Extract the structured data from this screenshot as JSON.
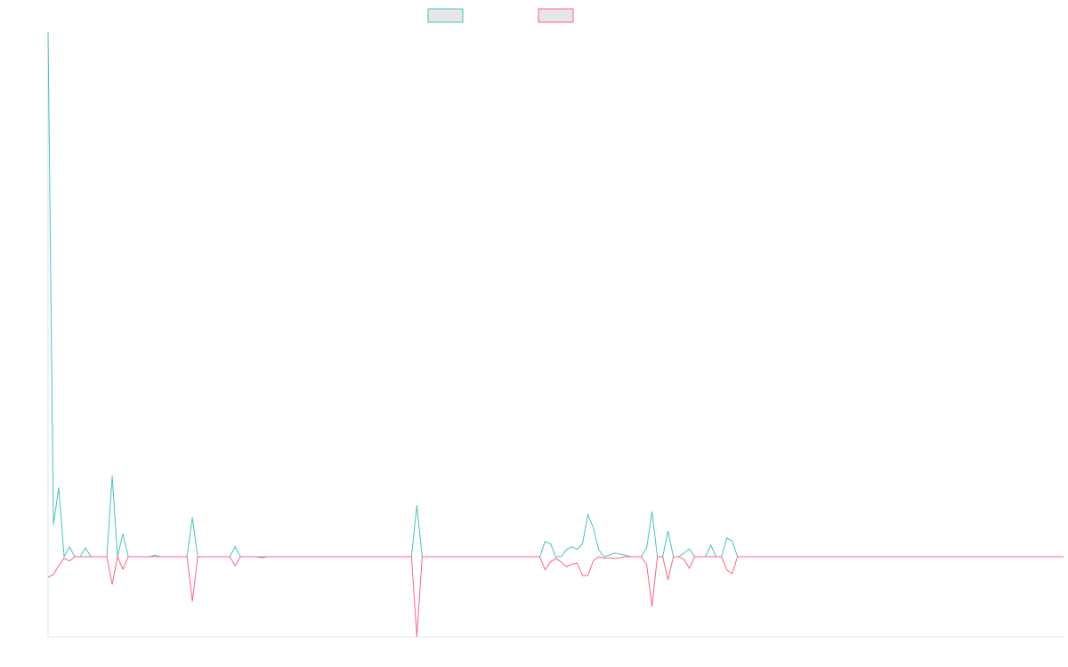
{
  "chart_data": {
    "type": "line",
    "series": [
      {
        "color": "#4bc0c0",
        "values": [
          100,
          6.1,
          13.2,
          0,
          1.9,
          0,
          0,
          1.7,
          0,
          0,
          0,
          0,
          15.4,
          0,
          4.4,
          0,
          0,
          0,
          0,
          0,
          0.3,
          0,
          0,
          0,
          0,
          0,
          0,
          7.5,
          0,
          0,
          0,
          0,
          0,
          0,
          0,
          1.9,
          0,
          0,
          0,
          0,
          0,
          0,
          0,
          0,
          0,
          0,
          0,
          0,
          0,
          0,
          0,
          0,
          0,
          0,
          0,
          0,
          0,
          0,
          0,
          0,
          0,
          0,
          0,
          0,
          0,
          0,
          0,
          0,
          0,
          9.8,
          0,
          0,
          0,
          0,
          0,
          0,
          0,
          0,
          0,
          0,
          0,
          0,
          0,
          0,
          0,
          0,
          0,
          0,
          0,
          0,
          0,
          0,
          0,
          2.9,
          2.5,
          0,
          0,
          1.4,
          1.9,
          1.4,
          2.5,
          8,
          5.6,
          1.4,
          0,
          0.3,
          0.7,
          0.5,
          0.3,
          0,
          0,
          0,
          1.7,
          8.6,
          0,
          0,
          4.9,
          0,
          0,
          0.7,
          1.5,
          0,
          0,
          0,
          2.2,
          0,
          0,
          3.6,
          3,
          0,
          0,
          0,
          0,
          0,
          0,
          0,
          0,
          0,
          0,
          0,
          0,
          0,
          0,
          0,
          0,
          0,
          0,
          0,
          0,
          0,
          0,
          0,
          0,
          0,
          0,
          0,
          0,
          0,
          0,
          0,
          0,
          0,
          0,
          0,
          0,
          0,
          0,
          0,
          0,
          0,
          0,
          0,
          0,
          0,
          0,
          0,
          0,
          0,
          0,
          0,
          0,
          0,
          0,
          0,
          0,
          0,
          0,
          0,
          0,
          0,
          0
        ]
      },
      {
        "color": "#ff6384",
        "values": [
          -3.9,
          -3.4,
          -1.7,
          -0.3,
          -0.8,
          0,
          0,
          0,
          0,
          0,
          0,
          0,
          -5.3,
          0,
          -2.4,
          0,
          0,
          0,
          0,
          0,
          0,
          0,
          0,
          0,
          0,
          0,
          0,
          -8.5,
          0,
          0,
          0,
          0,
          0,
          0,
          0,
          -1.7,
          0,
          0,
          0,
          0,
          -0.2,
          0,
          0,
          0,
          0,
          0,
          0,
          0,
          0,
          0,
          0,
          0,
          0,
          0,
          0,
          0,
          0,
          0,
          0,
          0,
          0,
          0,
          0,
          0,
          0,
          0,
          0,
          0,
          0,
          -15.25,
          0,
          0,
          0,
          0,
          0,
          0,
          0,
          0,
          0,
          0,
          0,
          0,
          0,
          0,
          0,
          0,
          0,
          0,
          0,
          0,
          0,
          0,
          0,
          -2.5,
          -1,
          -0.3,
          -1,
          -1.9,
          -1.4,
          -1.2,
          -3.6,
          -3.6,
          -0.8,
          0,
          -0.3,
          -0.2,
          -0.3,
          -0.2,
          0,
          0,
          0,
          0,
          -1.5,
          -9.5,
          0,
          0,
          -4.4,
          0,
          0,
          -0.5,
          -2.2,
          0,
          0,
          0,
          0,
          0,
          0,
          -2.5,
          -3.2,
          0,
          0,
          0,
          0,
          0,
          0,
          0,
          0,
          0,
          0,
          0,
          0,
          0,
          0,
          0,
          0,
          0,
          0,
          0,
          0,
          0,
          0,
          0,
          0,
          0,
          0,
          0,
          0,
          0,
          0,
          0,
          0,
          0,
          0,
          0,
          0,
          0,
          0,
          0,
          0,
          0,
          0,
          0,
          0,
          0,
          0,
          0,
          0,
          0,
          0,
          0,
          0,
          0,
          0,
          0,
          0,
          0,
          0,
          0,
          0,
          0,
          0
        ]
      }
    ],
    "ylim": [
      -15.25,
      100
    ],
    "legend": "top"
  }
}
